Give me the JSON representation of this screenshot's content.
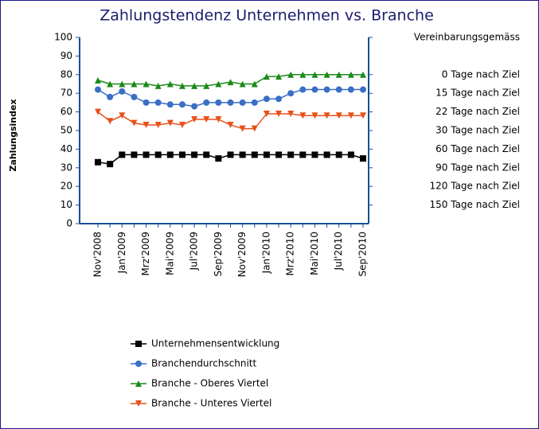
{
  "chart_data": {
    "type": "line",
    "title": "Zahlungstendenz Unternehmen vs. Branche",
    "y_label": "Zahlungsindex",
    "categories": [
      "Nov'2008",
      null,
      "Jan'2009",
      null,
      "Mrz'2009",
      null,
      "Mai'2009",
      null,
      "Jul'2009",
      null,
      "Sep'2009",
      null,
      "Nov'2009",
      null,
      "Jan'2010",
      null,
      "Mrz'2010",
      null,
      "Mai'2010",
      null,
      "Jul'2010",
      null,
      "Sep'2010"
    ],
    "series": [
      {
        "name": "Unternehmensentwicklung",
        "color": "#000000",
        "marker": "square",
        "values": [
          33,
          32,
          37,
          37,
          37,
          37,
          37,
          37,
          37,
          37,
          35,
          37,
          37,
          37,
          37,
          37,
          37,
          37,
          37,
          37,
          37,
          37,
          35
        ]
      },
      {
        "name": "Branchendurchschnitt",
        "color": "#3a6fc4",
        "marker": "circle",
        "values": [
          72,
          68,
          71,
          68,
          65,
          65,
          64,
          64,
          63,
          65,
          65,
          65,
          65,
          65,
          67,
          67,
          70,
          72,
          72,
          72,
          72,
          72,
          72
        ]
      },
      {
        "name": "Branche - Oberes Viertel",
        "color": "#1a8a1a",
        "marker": "triangle-up",
        "values": [
          77,
          75,
          75,
          75,
          75,
          74,
          75,
          74,
          74,
          74,
          75,
          76,
          75,
          75,
          79,
          79,
          80,
          80,
          80,
          80,
          80,
          80,
          80
        ]
      },
      {
        "name": "Branche - Unteres Viertel",
        "color": "#e8501a",
        "marker": "triangle-down",
        "values": [
          60,
          55,
          58,
          54,
          53,
          53,
          54,
          53,
          56,
          56,
          56,
          53,
          51,
          51,
          59,
          59,
          59,
          58,
          58,
          58,
          58,
          58,
          58
        ]
      }
    ],
    "ylim": [
      0,
      100
    ],
    "yticks": [
      0,
      10,
      20,
      30,
      40,
      50,
      60,
      70,
      80,
      90,
      100
    ],
    "y2lim": [
      0,
      100
    ],
    "y2ticks": [
      {
        "value": 100,
        "label": "Vereinbarungsgemäss"
      },
      {
        "value": 80,
        "label": "0 Tage nach Ziel"
      },
      {
        "value": 70,
        "label": "15 Tage nach Ziel"
      },
      {
        "value": 60,
        "label": "22 Tage nach Ziel"
      },
      {
        "value": 50,
        "label": "30 Tage nach Ziel"
      },
      {
        "value": 40,
        "label": "60 Tage nach Ziel"
      },
      {
        "value": 30,
        "label": "90 Tage nach Ziel"
      },
      {
        "value": 20,
        "label": "120 Tage nach Ziel"
      },
      {
        "value": 10,
        "label": "150 Tage nach Ziel"
      }
    ],
    "grid": false,
    "legend": "bottom"
  }
}
